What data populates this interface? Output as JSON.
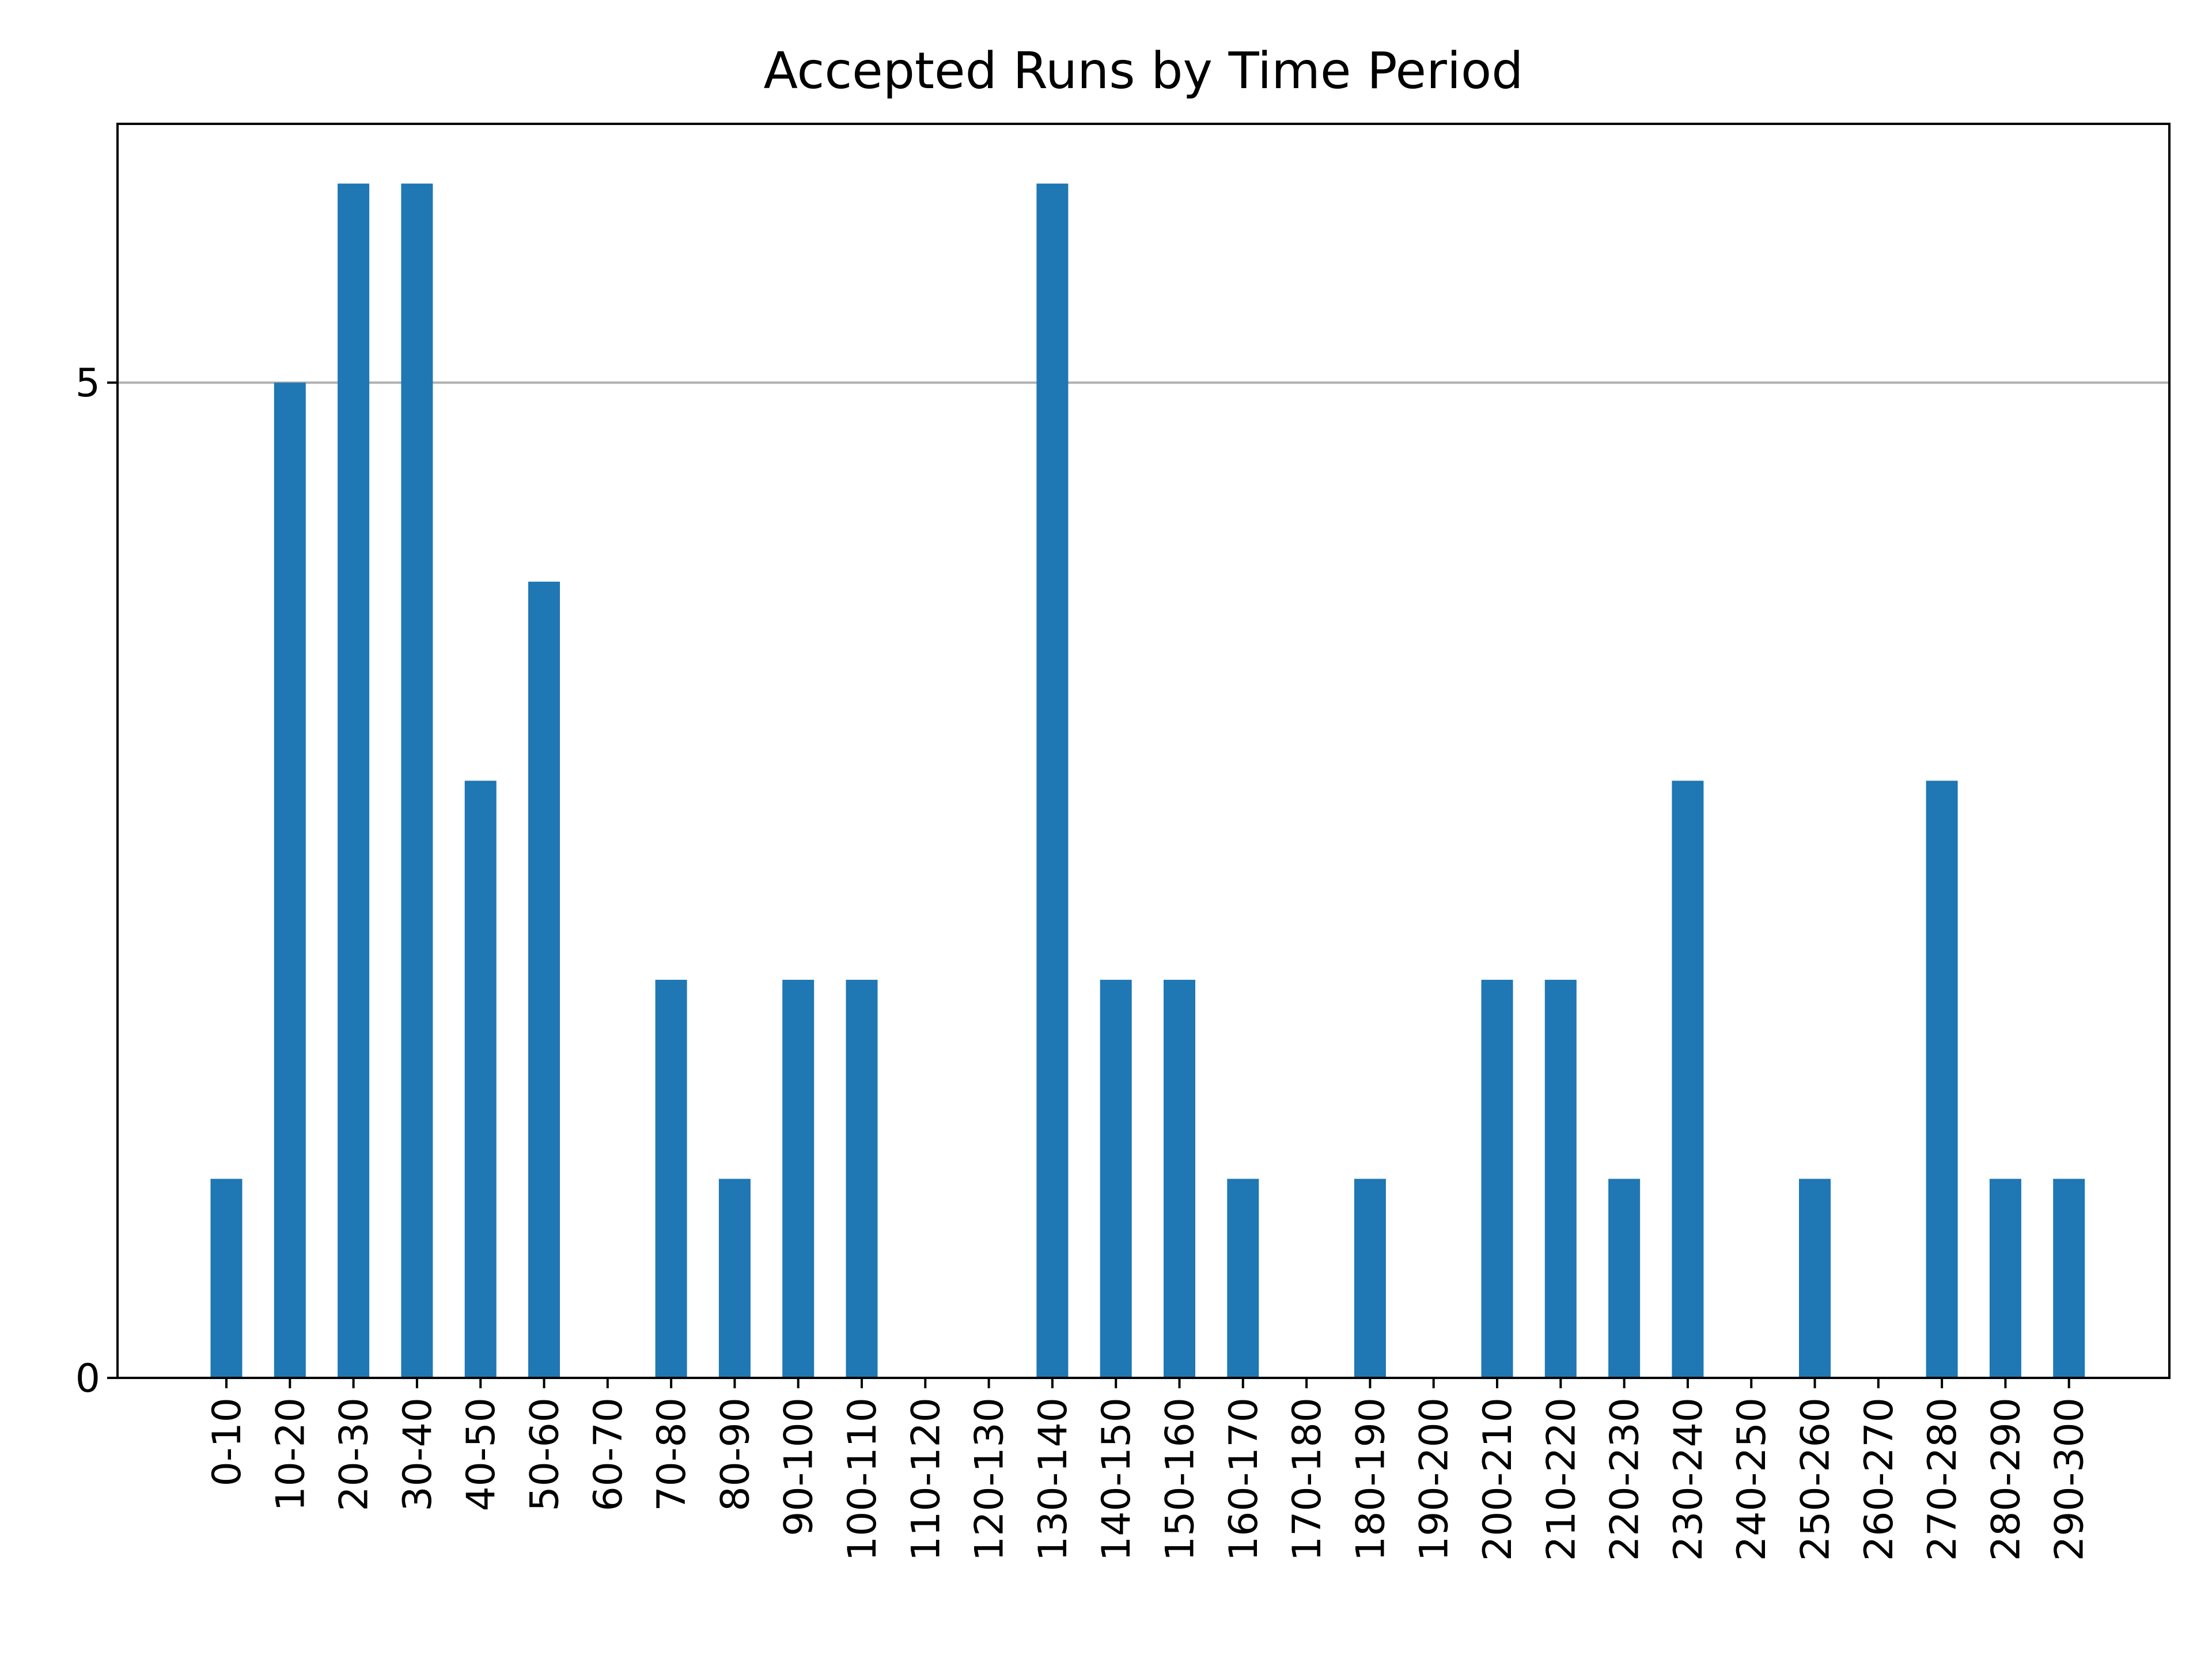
{
  "chart_data": {
    "type": "bar",
    "title": "Accepted Runs by Time Period",
    "xlabel": "",
    "ylabel": "",
    "categories": [
      "0-10",
      "10-20",
      "20-30",
      "30-40",
      "40-50",
      "50-60",
      "60-70",
      "70-80",
      "80-90",
      "90-100",
      "100-110",
      "110-120",
      "120-130",
      "130-140",
      "140-150",
      "150-160",
      "160-170",
      "170-180",
      "180-190",
      "190-200",
      "200-210",
      "210-220",
      "220-230",
      "230-240",
      "240-250",
      "250-260",
      "260-270",
      "270-280",
      "280-290",
      "290-300"
    ],
    "values": [
      1,
      5,
      6,
      6,
      3,
      4,
      0,
      2,
      1,
      2,
      2,
      0,
      0,
      6,
      2,
      2,
      1,
      0,
      1,
      0,
      2,
      2,
      1,
      3,
      0,
      1,
      0,
      3,
      1,
      1
    ],
    "ylim": [
      0,
      6.3
    ],
    "yticks": [
      0,
      5
    ],
    "ytick_labels": [
      "0",
      "5"
    ],
    "grid": "y-major",
    "bar_color": "#1f77b4",
    "grid_color": "#b0b0b0"
  }
}
